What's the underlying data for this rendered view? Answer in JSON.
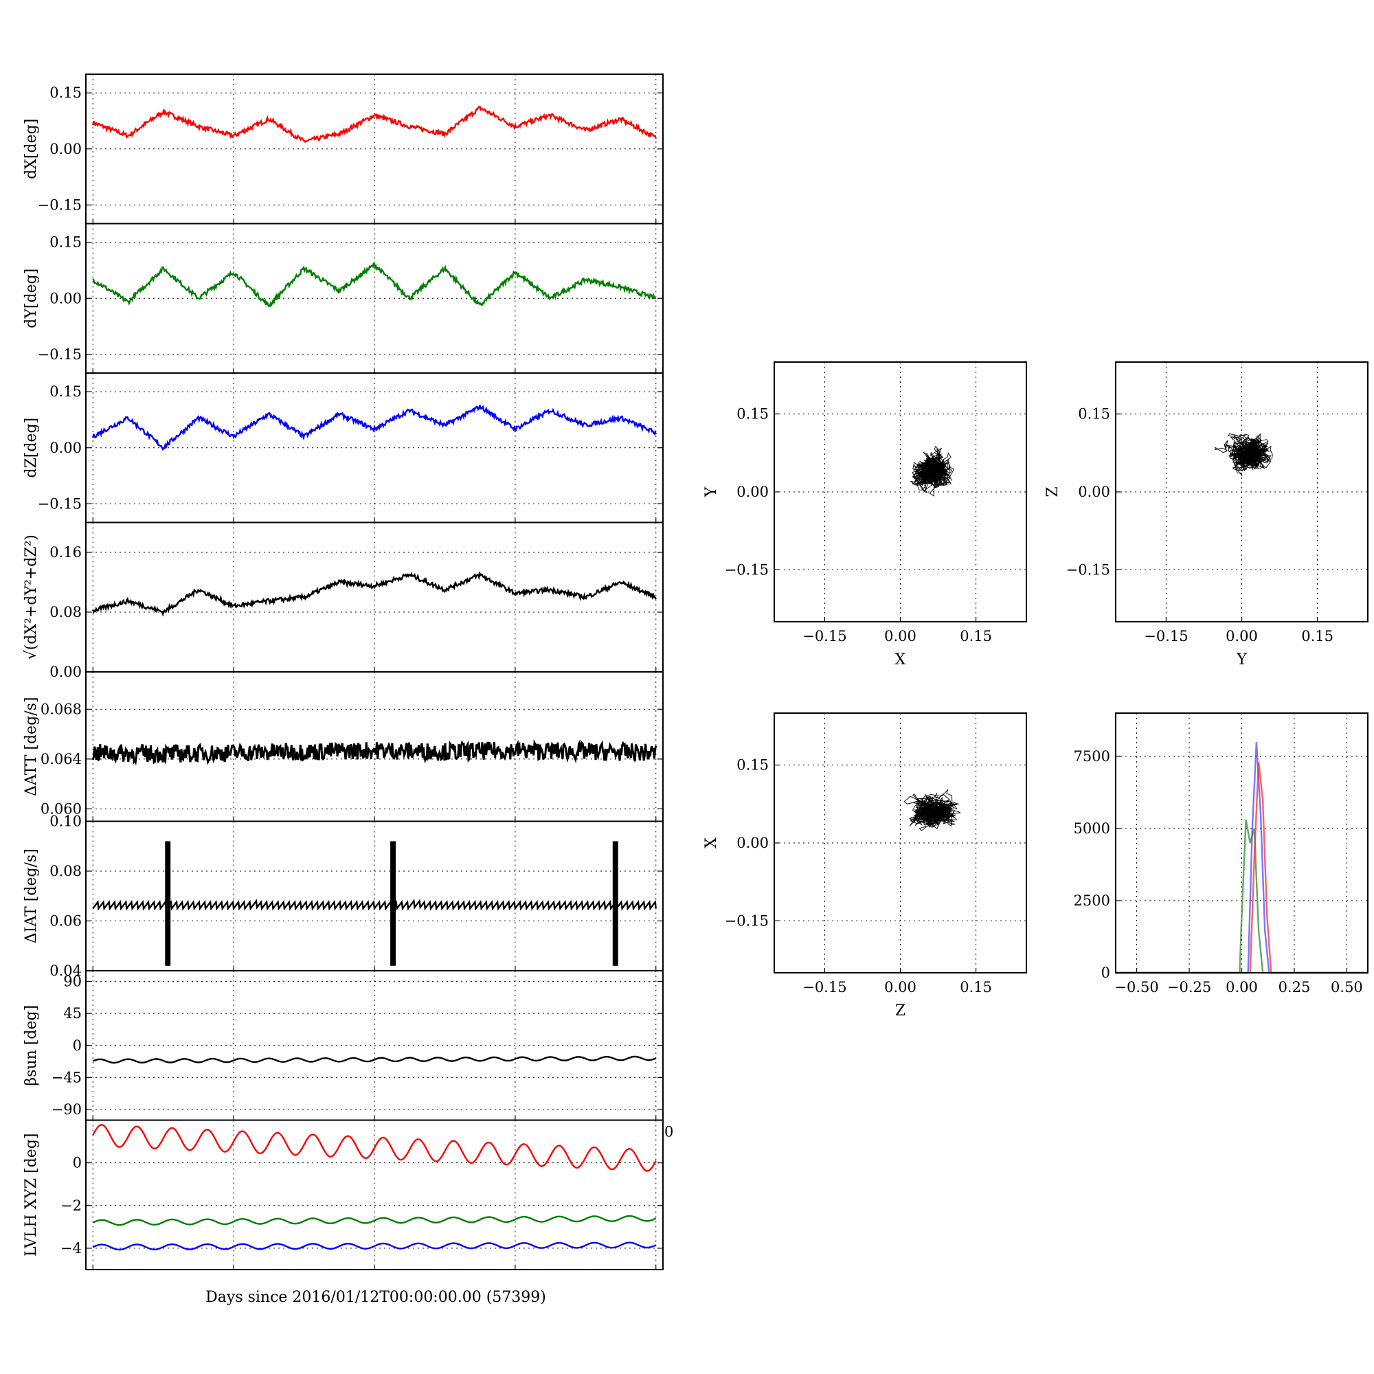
{
  "figure": {
    "xlabel": "Days since 2016/01/12T00:00:00.00 (57399)"
  },
  "chart_data": [
    {
      "id": "dX",
      "type": "line",
      "ylabel": "dX[deg]",
      "ylim": [
        -0.2,
        0.2
      ],
      "yticks": [
        -0.15,
        0.0,
        0.15
      ],
      "ytick_labels": [
        "−0.15",
        "0.00",
        "0.15"
      ],
      "grid": true,
      "series": [
        {
          "color": "#ff0000",
          "x": [
            0,
            0.25,
            0.5,
            0.75,
            1.0,
            1.25,
            1.5,
            1.75,
            2.0,
            2.25,
            2.5,
            2.75,
            3.0,
            3.25,
            3.5,
            3.75,
            4.0
          ],
          "values": [
            0.07,
            0.035,
            0.1,
            0.06,
            0.035,
            0.08,
            0.02,
            0.04,
            0.09,
            0.06,
            0.04,
            0.11,
            0.06,
            0.09,
            0.05,
            0.08,
            0.03
          ]
        }
      ]
    },
    {
      "id": "dY",
      "type": "line",
      "ylabel": "dY[deg]",
      "ylim": [
        -0.2,
        0.2
      ],
      "yticks": [
        -0.15,
        0.0,
        0.15
      ],
      "ytick_labels": [
        "−0.15",
        "0.00",
        "0.15"
      ],
      "grid": true,
      "series": [
        {
          "color": "#007f00",
          "x": [
            0,
            0.25,
            0.5,
            0.75,
            1.0,
            1.25,
            1.5,
            1.75,
            2.0,
            2.25,
            2.5,
            2.75,
            3.0,
            3.25,
            3.5,
            3.75,
            4.0
          ],
          "values": [
            0.05,
            -0.01,
            0.08,
            0.0,
            0.07,
            -0.02,
            0.08,
            0.02,
            0.09,
            0.0,
            0.08,
            -0.02,
            0.07,
            0.0,
            0.05,
            0.03,
            0.0
          ]
        }
      ]
    },
    {
      "id": "dZ",
      "type": "line",
      "ylabel": "dZ[deg]",
      "ylim": [
        -0.2,
        0.2
      ],
      "yticks": [
        -0.15,
        0.0,
        0.15
      ],
      "ytick_labels": [
        "−0.15",
        "0.00",
        "0.15"
      ],
      "grid": true,
      "series": [
        {
          "color": "#0000ff",
          "x": [
            0,
            0.25,
            0.5,
            0.75,
            1.0,
            1.25,
            1.5,
            1.75,
            2.0,
            2.25,
            2.5,
            2.75,
            3.0,
            3.25,
            3.5,
            3.75,
            4.0
          ],
          "values": [
            0.03,
            0.08,
            0.0,
            0.08,
            0.03,
            0.09,
            0.03,
            0.09,
            0.05,
            0.1,
            0.06,
            0.11,
            0.05,
            0.1,
            0.06,
            0.08,
            0.04
          ]
        }
      ]
    },
    {
      "id": "dR",
      "type": "line",
      "ylabel": "√(dX²+dY²+dZ²)",
      "ylim": [
        0.0,
        0.2
      ],
      "yticks": [
        0.0,
        0.08,
        0.16
      ],
      "ytick_labels": [
        "0.00",
        "0.08",
        "0.16"
      ],
      "grid": true,
      "series": [
        {
          "color": "#000000",
          "x": [
            0,
            0.25,
            0.5,
            0.75,
            1.0,
            1.25,
            1.5,
            1.75,
            2.0,
            2.25,
            2.5,
            2.75,
            3.0,
            3.25,
            3.5,
            3.75,
            4.0
          ],
          "values": [
            0.082,
            0.095,
            0.08,
            0.11,
            0.088,
            0.095,
            0.1,
            0.12,
            0.115,
            0.13,
            0.11,
            0.13,
            0.105,
            0.11,
            0.1,
            0.12,
            0.1
          ]
        }
      ]
    },
    {
      "id": "dATT",
      "type": "line",
      "ylabel": "ΔATT [deg/s]",
      "ylim": [
        0.059,
        0.071
      ],
      "yticks": [
        0.06,
        0.064,
        0.068
      ],
      "ytick_labels": [
        "0.060",
        "0.064",
        "0.068"
      ],
      "grid": true,
      "series": [
        {
          "color": "#000000",
          "x": [
            0,
            0.5,
            1.0,
            1.5,
            2.0,
            2.5,
            3.0,
            3.5,
            4.0
          ],
          "values": [
            0.0645,
            0.0644,
            0.0645,
            0.0646,
            0.0647,
            0.0646,
            0.0647,
            0.0646,
            0.0645
          ]
        }
      ]
    },
    {
      "id": "dIAT",
      "type": "line",
      "ylabel": "ΔIAT [deg/s]",
      "ylim": [
        0.04,
        0.1
      ],
      "yticks": [
        0.04,
        0.06,
        0.08,
        0.1
      ],
      "ytick_labels": [
        "0.04",
        "0.06",
        "0.08",
        "0.10"
      ],
      "grid": true,
      "series": [
        {
          "color": "#000000",
          "x": [
            0,
            0.5,
            1.0,
            1.5,
            2.0,
            2.5,
            3.0,
            3.5,
            4.0
          ],
          "values": [
            0.065,
            0.065,
            0.065,
            0.065,
            0.065,
            0.065,
            0.065,
            0.065,
            0.065
          ],
          "spikes_x": [
            0.52,
            2.12,
            3.7
          ],
          "spike_range": [
            0.042,
            0.092
          ]
        }
      ]
    },
    {
      "id": "beta",
      "type": "line",
      "ylabel": "βsun [deg]",
      "ylim": [
        -105,
        105
      ],
      "yticks": [
        -90,
        -45,
        0,
        45,
        90
      ],
      "ytick_labels": [
        "−90",
        "−45",
        "0",
        "45",
        "90"
      ],
      "grid": true,
      "series": [
        {
          "color": "#000000",
          "x": [
            0,
            4.0
          ],
          "values": [
            -22,
            -18
          ]
        }
      ]
    },
    {
      "id": "lvlh",
      "type": "line",
      "ylabel": "LVLH XYZ [deg]",
      "ylim": [
        -5,
        2
      ],
      "yticks": [
        -4,
        -2,
        0
      ],
      "ytick_labels": [
        "−4",
        "−2",
        "0"
      ],
      "extra_tick_label": "0",
      "grid": true,
      "series": [
        {
          "color": "#ff0000",
          "x": [
            0,
            4.0
          ],
          "values": [
            1.3,
            0.1
          ]
        },
        {
          "color": "#007f00",
          "x": [
            0,
            4.0
          ],
          "values": [
            -2.8,
            -2.6
          ]
        },
        {
          "color": "#0000ff",
          "x": [
            0,
            4.0
          ],
          "values": [
            -3.95,
            -3.85
          ]
        }
      ]
    },
    {
      "id": "scatter_xy",
      "type": "scatter",
      "xlabel": "X",
      "ylabel": "Y",
      "xlim": [
        -0.25,
        0.25
      ],
      "ylim": [
        -0.25,
        0.25
      ],
      "xticks": [
        -0.15,
        0.0,
        0.15
      ],
      "xtick_labels": [
        "−0.15",
        "0.00",
        "0.15"
      ],
      "yticks": [
        -0.15,
        0.0,
        0.15
      ],
      "ytick_labels": [
        "−0.15",
        "0.00",
        "0.15"
      ],
      "grid": true,
      "cloud": {
        "cx": 0.065,
        "cy": 0.04,
        "sx": 0.055,
        "sy": 0.055
      }
    },
    {
      "id": "scatter_yz",
      "type": "scatter",
      "xlabel": "Y",
      "ylabel": "Z",
      "xlim": [
        -0.25,
        0.25
      ],
      "ylim": [
        -0.25,
        0.25
      ],
      "xticks": [
        -0.15,
        0.0,
        0.15
      ],
      "xtick_labels": [
        "−0.15",
        "0.00",
        "0.15"
      ],
      "yticks": [
        -0.15,
        0.0,
        0.15
      ],
      "ytick_labels": [
        "−0.15",
        "0.00",
        "0.15"
      ],
      "grid": true,
      "cloud": {
        "cx": 0.02,
        "cy": 0.075,
        "sx": 0.06,
        "sy": 0.05
      }
    },
    {
      "id": "scatter_zx",
      "type": "scatter",
      "xlabel": "Z",
      "ylabel": "X",
      "xlim": [
        -0.25,
        0.25
      ],
      "ylim": [
        -0.25,
        0.25
      ],
      "xticks": [
        -0.15,
        0.0,
        0.15
      ],
      "xtick_labels": [
        "−0.15",
        "0.00",
        "0.15"
      ],
      "yticks": [
        -0.15,
        0.0,
        0.15
      ],
      "ytick_labels": [
        "−0.15",
        "0.00",
        "0.15"
      ],
      "grid": true,
      "cloud": {
        "cx": 0.07,
        "cy": 0.06,
        "sx": 0.06,
        "sy": 0.045
      }
    },
    {
      "id": "histogram",
      "type": "line",
      "xlim": [
        -0.6,
        0.6
      ],
      "ylim": [
        0,
        9000
      ],
      "xticks": [
        -0.5,
        -0.25,
        0.0,
        0.25,
        0.5
      ],
      "xtick_labels": [
        "−0.50",
        "−0.25",
        "0.00",
        "0.25",
        "0.50"
      ],
      "yticks": [
        0,
        2500,
        5000,
        7500
      ],
      "ytick_labels": [
        "0",
        "2500",
        "5000",
        "7500"
      ],
      "grid": true,
      "series": [
        {
          "color": "#2e8b2e",
          "x": [
            -0.6,
            -0.01,
            0.0,
            0.02,
            0.04,
            0.06,
            0.08,
            0.1,
            0.6
          ],
          "values": [
            0,
            0,
            2000,
            5300,
            4500,
            5000,
            1500,
            0,
            0
          ]
        },
        {
          "color": "#4a4aff",
          "x": [
            -0.6,
            0.03,
            0.05,
            0.07,
            0.09,
            0.11,
            0.13,
            0.6
          ],
          "values": [
            0,
            0,
            5000,
            8000,
            5500,
            1500,
            0,
            0
          ]
        },
        {
          "color": "#ff2a2a",
          "x": [
            -0.6,
            0.04,
            0.06,
            0.08,
            0.1,
            0.12,
            0.14,
            0.6
          ],
          "values": [
            0,
            0,
            4000,
            7300,
            6000,
            2000,
            0,
            0
          ]
        }
      ]
    }
  ]
}
